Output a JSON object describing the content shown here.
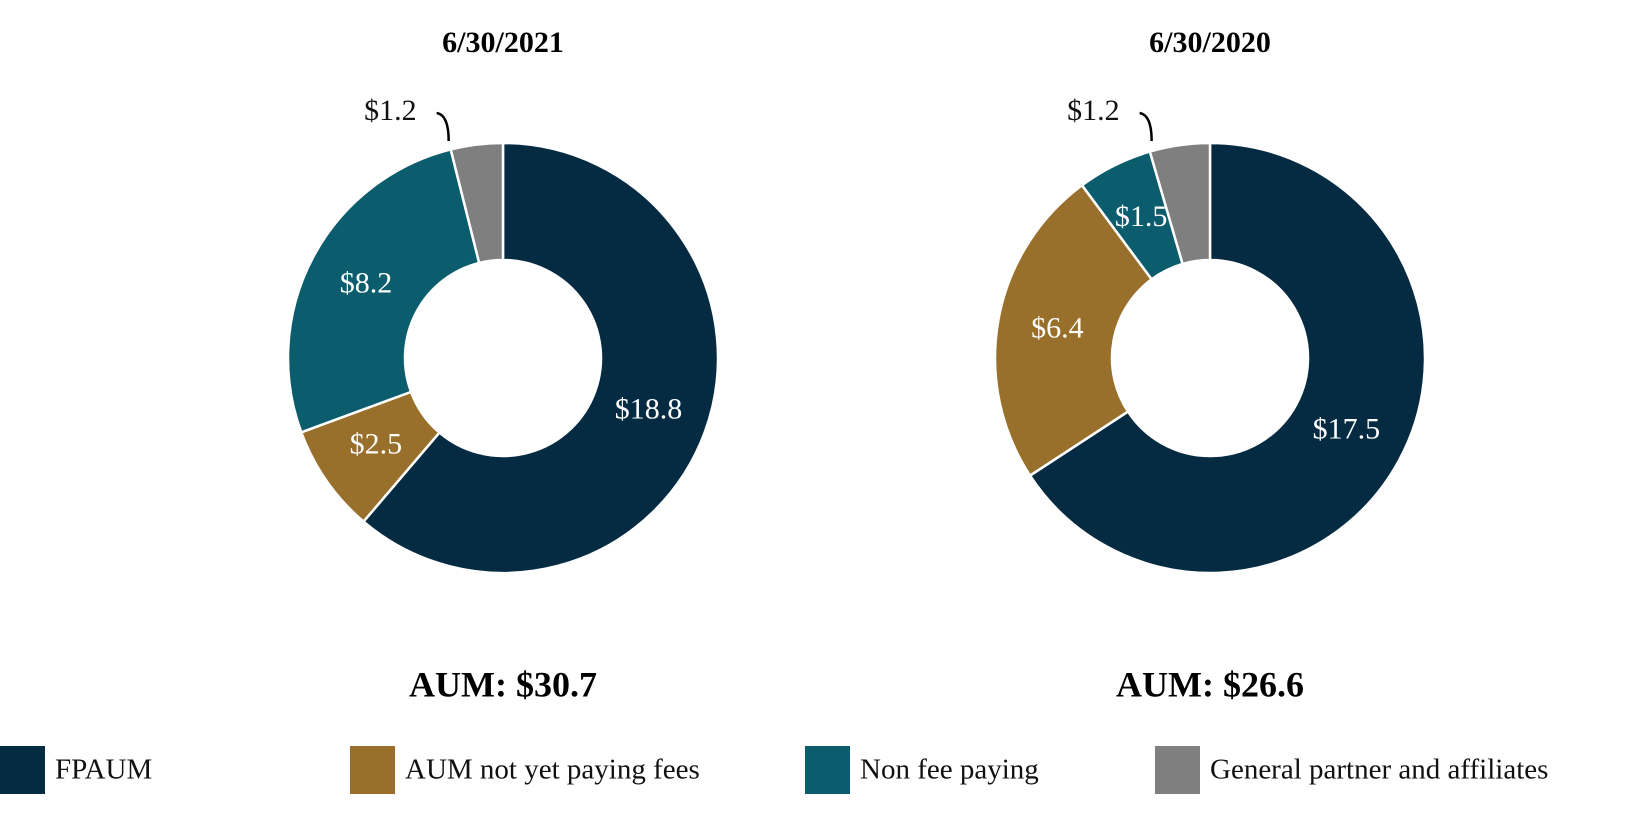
{
  "chart_data": [
    {
      "type": "donut",
      "title": "6/30/2021",
      "categories": [
        "FPAUM",
        "AUM not yet paying fees",
        "Non fee paying",
        "General partner and affiliates"
      ],
      "values": [
        18.8,
        2.5,
        8.2,
        1.2
      ],
      "value_labels": [
        "$18.8",
        "$2.5",
        "$8.2",
        "$1.2"
      ],
      "colors": [
        "#052b42",
        "#98702b",
        "#0b5d6d",
        "#7f7f7f"
      ],
      "total_label": "AUM: $30.7"
    },
    {
      "type": "donut",
      "title": "6/30/2020",
      "categories": [
        "FPAUM",
        "AUM not yet paying fees",
        "Non fee paying",
        "General partner and affiliates"
      ],
      "values": [
        17.5,
        6.4,
        1.5,
        1.2
      ],
      "value_labels": [
        "$17.5",
        "$6.4",
        "$1.5",
        "$1.2"
      ],
      "colors": [
        "#052b42",
        "#98702b",
        "#0b5d6d",
        "#7f7f7f"
      ],
      "total_label": "AUM: $26.6"
    }
  ]
}
